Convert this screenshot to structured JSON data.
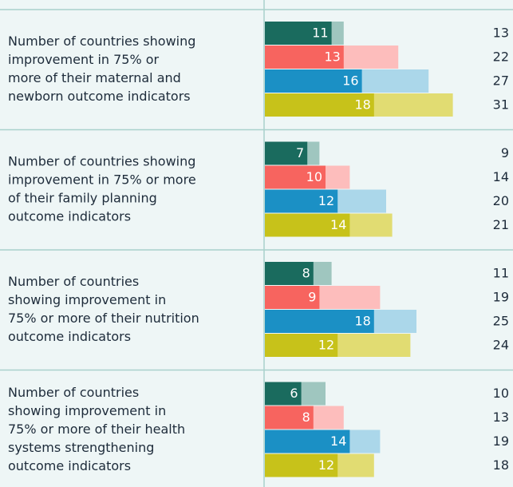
{
  "chart_data": {
    "type": "bar",
    "categories": [
      [
        "Number of countries showing",
        "improvement in 75% or",
        "more of their maternal and",
        "newborn outcome indicators"
      ],
      [
        "Number of countries showing",
        "improvement in 75% or more",
        "of their family planning",
        "outcome indicators"
      ],
      [
        "Number of countries",
        "showing improvement in",
        "75% or more of their nutrition",
        "outcome indicators"
      ],
      [
        "Number of countries",
        "showing improvement in",
        "75% or more of their health",
        "systems strengthening",
        "outcome indicators"
      ]
    ],
    "series": [
      {
        "color": "#1a6b5e",
        "light_color": "#9fc6bf",
        "values": [
          11,
          7,
          8,
          6
        ],
        "totals": [
          13,
          9,
          11,
          10
        ]
      },
      {
        "color": "#f7645f",
        "light_color": "#fdbdbc",
        "values": [
          13,
          10,
          9,
          8
        ],
        "totals": [
          22,
          14,
          19,
          13
        ]
      },
      {
        "color": "#1b90c5",
        "light_color": "#abd7ea",
        "values": [
          16,
          12,
          18,
          14
        ],
        "totals": [
          27,
          20,
          25,
          19
        ]
      },
      {
        "color": "#c7c21a",
        "light_color": "#e1dc72",
        "values": [
          18,
          14,
          12,
          12
        ],
        "totals": [
          31,
          21,
          24,
          18
        ]
      }
    ],
    "xlim": [
      0,
      40
    ]
  }
}
